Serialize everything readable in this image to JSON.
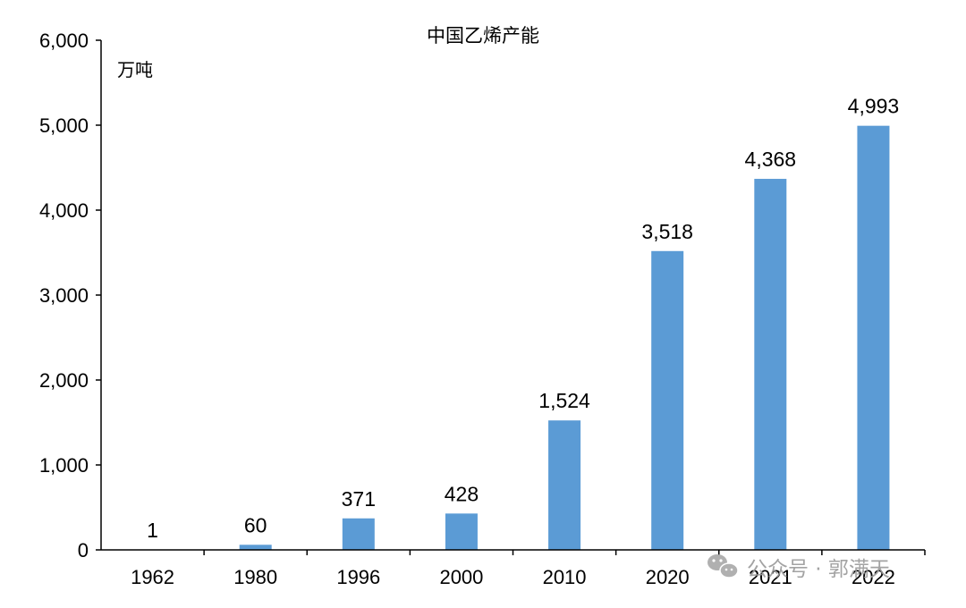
{
  "chart_data": {
    "type": "bar",
    "title": "中国乙烯产能",
    "ylabel": "万吨",
    "xlabel": "",
    "categories": [
      "1962",
      "1980",
      "1996",
      "2000",
      "2010",
      "2020",
      "2021",
      "2022"
    ],
    "values": [
      1,
      60,
      371,
      428,
      1524,
      3518,
      4368,
      4993
    ],
    "data_labels": [
      "1",
      "60",
      "371",
      "428",
      "1,524",
      "3,518",
      "4,368",
      "4,993"
    ],
    "y_ticks": [
      0,
      1000,
      2000,
      3000,
      4000,
      5000,
      6000
    ],
    "y_tick_labels": [
      "0",
      "1,000",
      "2,000",
      "3,000",
      "4,000",
      "5,000",
      "6,000"
    ],
    "ylim": [
      0,
      6000
    ],
    "grid": false,
    "legend": "none",
    "bar_color": "#5b9bd5"
  },
  "watermark": {
    "text": "公众号 · 郭满天",
    "icon": "wechat-icon"
  }
}
